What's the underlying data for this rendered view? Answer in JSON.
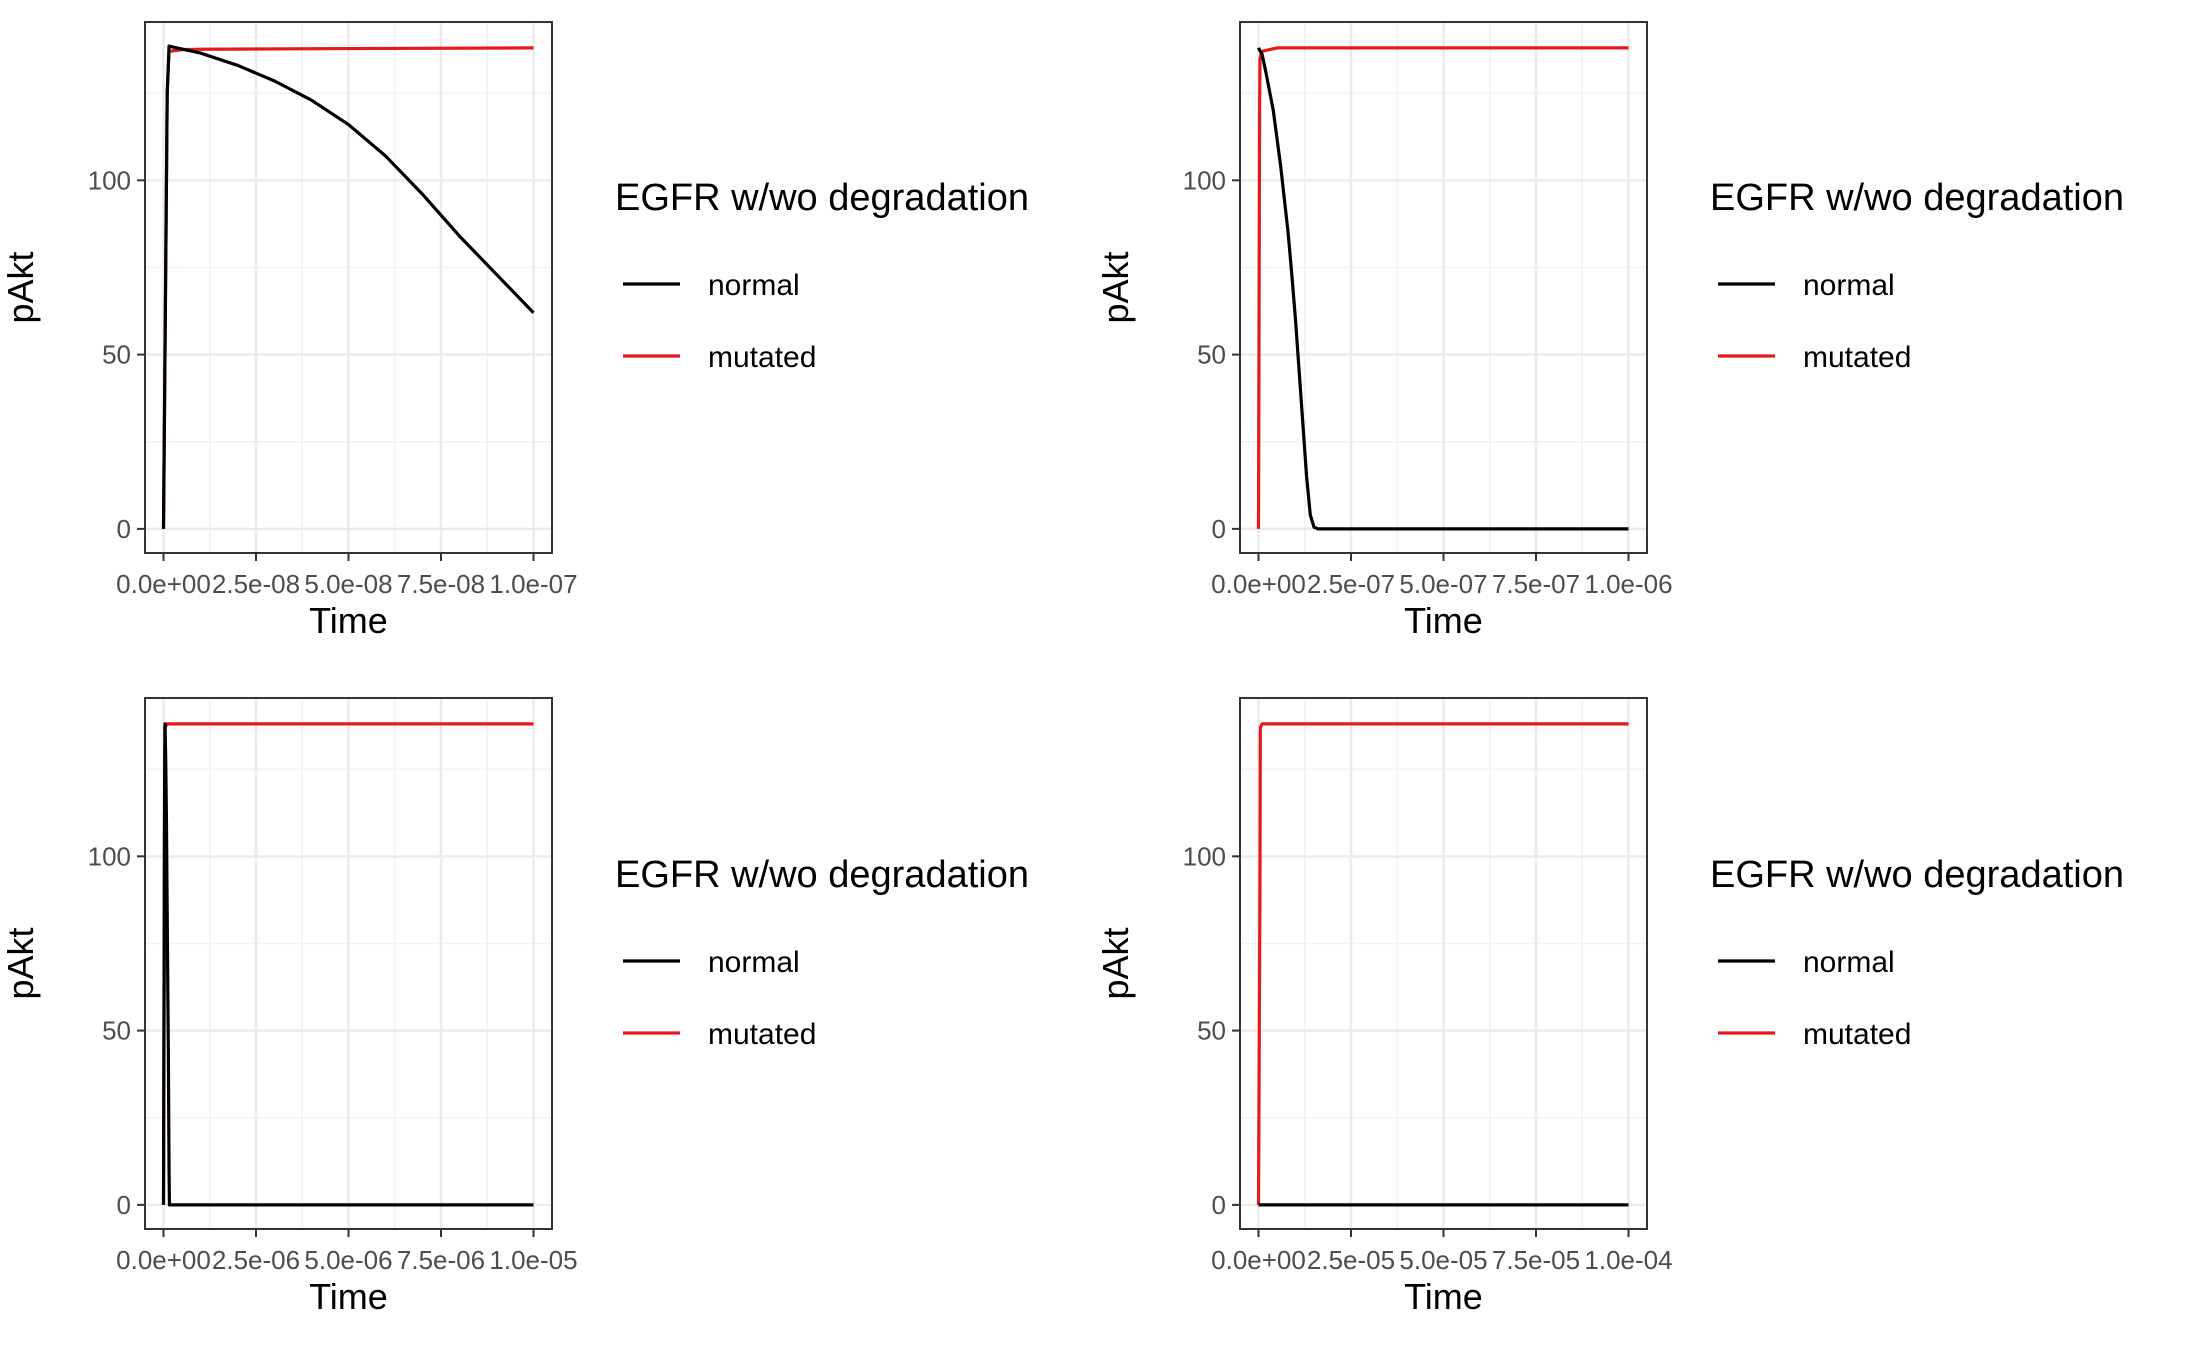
{
  "legend": {
    "title": "EGFR w/wo degradation",
    "items": [
      {
        "label": "normal",
        "color": "#000000"
      },
      {
        "label": "mutated",
        "color": "#e41a1c"
      }
    ]
  },
  "chart_data": [
    {
      "type": "line",
      "xlabel": "Time",
      "ylabel": "pAkt",
      "xlim": [
        0,
        1e-07
      ],
      "ylim": [
        0,
        140
      ],
      "x_ticks": [
        "0.0e+00",
        "2.5e-08",
        "5.0e-08",
        "7.5e-08",
        "1.0e-07"
      ],
      "y_ticks": [
        "0",
        "50",
        "100"
      ],
      "grid": true,
      "series": [
        {
          "name": "normal",
          "color": "#000000",
          "x": [
            0,
            1e-09,
            1.5e-09,
            1e-08,
            2e-08,
            3e-08,
            4e-08,
            5e-08,
            6e-08,
            7e-08,
            8e-08,
            9e-08,
            1e-07
          ],
          "y": [
            0,
            125,
            138.5,
            136.5,
            133,
            128.5,
            123,
            116,
            107,
            96,
            84,
            73,
            62
          ]
        },
        {
          "name": "mutated",
          "color": "#e41a1c",
          "x": [
            0,
            1e-09,
            1.5e-09,
            5e-09,
            1e-08,
            5e-08,
            1e-07
          ],
          "y": [
            0,
            125,
            137,
            137.5,
            137.6,
            137.8,
            138
          ]
        }
      ]
    },
    {
      "type": "line",
      "xlabel": "Time",
      "ylabel": "pAkt",
      "xlim": [
        0,
        1e-06
      ],
      "ylim": [
        0,
        140
      ],
      "x_ticks": [
        "0.0e+00",
        "2.5e-07",
        "5.0e-07",
        "7.5e-07",
        "1.0e-06"
      ],
      "y_ticks": [
        "0",
        "50",
        "100"
      ],
      "grid": true,
      "series": [
        {
          "name": "normal",
          "color": "#000000",
          "x": [
            0,
            1e-08,
            2e-08,
            4e-08,
            6e-08,
            8e-08,
            9e-08,
            1e-07,
            1.1e-07,
            1.2e-07,
            1.3e-07,
            1.4e-07,
            1.5e-07,
            1.6e-07,
            1e-06
          ],
          "y": [
            138,
            136,
            131,
            120,
            104,
            85,
            73,
            60,
            45,
            30,
            15,
            4,
            0.5,
            0,
            0
          ]
        },
        {
          "name": "mutated",
          "color": "#e41a1c",
          "x": [
            0,
            3e-09,
            4e-09,
            1e-08,
            5e-08,
            1e-06
          ],
          "y": [
            0,
            120,
            135,
            137,
            138,
            138
          ]
        }
      ]
    },
    {
      "type": "line",
      "xlabel": "Time",
      "ylabel": "pAkt",
      "xlim": [
        0,
        1e-05
      ],
      "ylim": [
        0,
        140
      ],
      "x_ticks": [
        "0.0e+00",
        "2.5e-06",
        "5.0e-06",
        "7.5e-06",
        "1.0e-05"
      ],
      "y_ticks": [
        "0",
        "50",
        "100"
      ],
      "grid": true,
      "series": [
        {
          "name": "normal",
          "color": "#000000",
          "x": [
            0,
            3e-08,
            4e-08,
            6e-08,
            8e-08,
            1.1e-07,
            1.3e-07,
            1.5e-07,
            1.6e-07,
            1e-05
          ],
          "y": [
            0,
            120,
            138,
            128,
            110,
            70,
            45,
            10,
            0,
            0
          ]
        },
        {
          "name": "mutated",
          "color": "#e41a1c",
          "x": [
            0,
            3e-08,
            4e-08,
            1e-07,
            1e-06,
            1e-05
          ],
          "y": [
            0,
            120,
            137,
            138,
            138,
            138
          ]
        }
      ]
    },
    {
      "type": "line",
      "xlabel": "Time",
      "ylabel": "pAkt",
      "xlim": [
        0,
        0.0001
      ],
      "ylim": [
        0,
        140
      ],
      "x_ticks": [
        "0.0e+00",
        "2.5e-05",
        "5.0e-05",
        "7.5e-05",
        "1.0e-04"
      ],
      "y_ticks": [
        "0",
        "50",
        "100"
      ],
      "grid": true,
      "series": [
        {
          "name": "normal",
          "color": "#000000",
          "x": [
            0,
            0.0001
          ],
          "y": [
            0,
            0
          ]
        },
        {
          "name": "mutated",
          "color": "#e41a1c",
          "x": [
            0,
            2e-07,
            4e-07,
            5e-07,
            1e-06,
            0.0001
          ],
          "y": [
            0,
            45,
            95,
            137,
            138,
            138
          ]
        }
      ]
    }
  ]
}
